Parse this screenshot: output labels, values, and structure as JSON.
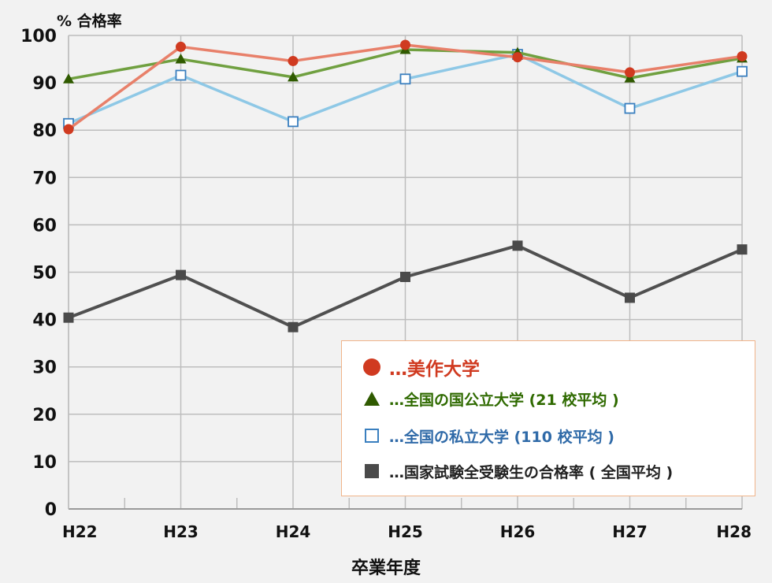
{
  "chart_data": {
    "type": "line",
    "ylabel": "% 合格率",
    "xlabel": "卒業年度",
    "categories": [
      "H22",
      "H23",
      "H24",
      "H25",
      "H26",
      "H27",
      "H28"
    ],
    "ylim": [
      0,
      100
    ],
    "yticks": [
      0,
      10,
      20,
      30,
      40,
      50,
      60,
      70,
      80,
      90,
      100
    ],
    "grid": true,
    "legend_position": "bottom-right",
    "series": [
      {
        "name": "…美作大学",
        "color": "#e8806a",
        "marker": "circle",
        "marker_color": "#d03a20",
        "values": [
          80.2,
          97.6,
          94.6,
          98.0,
          95.4,
          92.2,
          95.6
        ]
      },
      {
        "name": "…全国の国公立大学 (21 校平均 )",
        "color": "#70a040",
        "marker": "triangle",
        "marker_color": "#2f5a00",
        "values": [
          90.8,
          95.0,
          91.2,
          97.0,
          96.4,
          91.0,
          95.2
        ]
      },
      {
        "name": "…全国の私立大学 (110 校平均 )",
        "color": "#8ec8e6",
        "marker": "square-open",
        "marker_color": "#3a7fbf",
        "values": [
          81.4,
          91.6,
          81.8,
          90.8,
          96.0,
          84.6,
          92.4
        ]
      },
      {
        "name": "…国家試験全受験生の合格率 ( 全国平均 )",
        "color": "#505050",
        "marker": "square",
        "marker_color": "#4a4a4a",
        "values": [
          40.4,
          49.4,
          38.4,
          49.0,
          55.6,
          44.6,
          54.8
        ]
      }
    ]
  },
  "legend_items": [
    {
      "text": "…美作大学",
      "color": "#d03a20"
    },
    {
      "text": "…全国の国公立大学 (21 校平均 )",
      "color": "#2f6a00"
    },
    {
      "text": "…全国の私立大学 (110 校平均 )",
      "color": "#2f6aa8"
    },
    {
      "text": "…国家試験全受験生の合格率 ( 全国平均 )",
      "color": "#222222"
    }
  ]
}
